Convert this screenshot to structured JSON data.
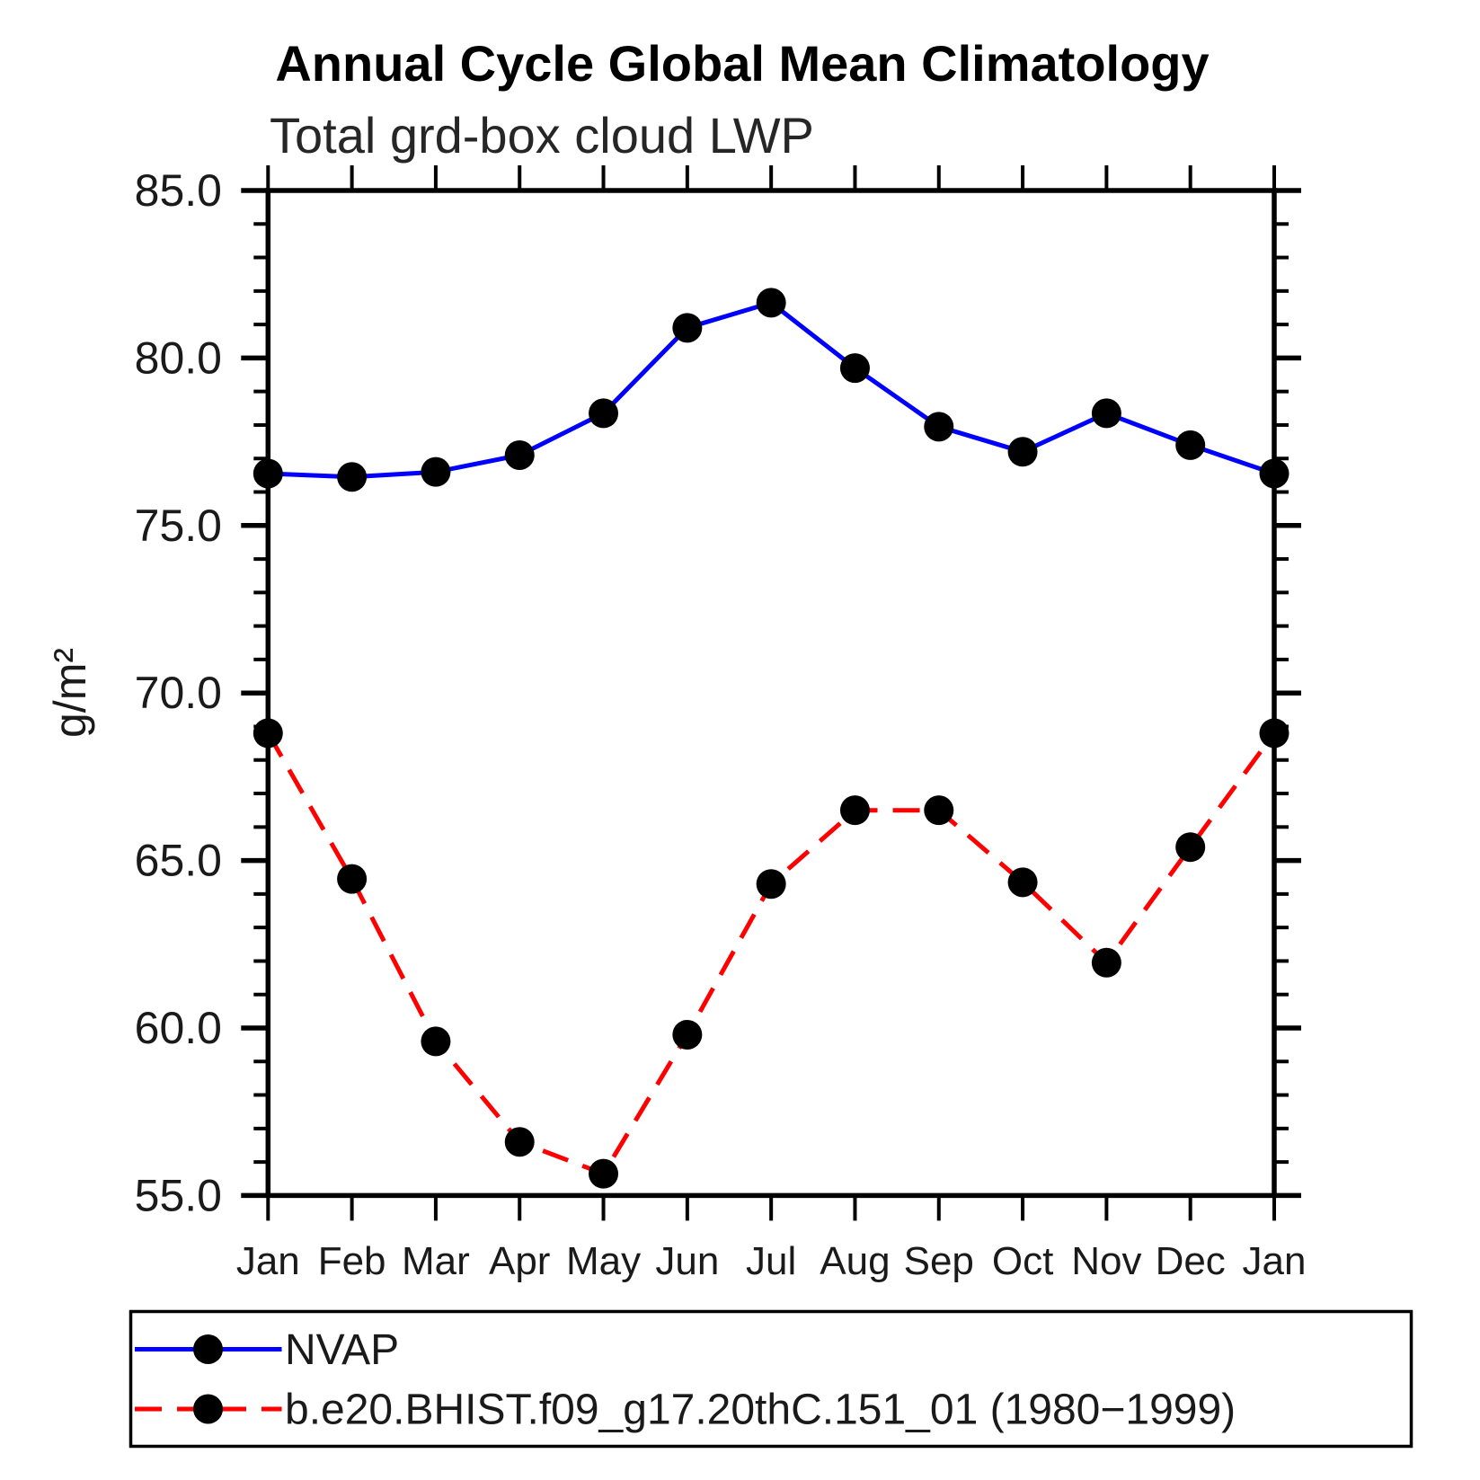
{
  "chart_data": {
    "type": "line",
    "title": "Annual Cycle Global Mean Climatology",
    "subtitle": "Total grd-box cloud LWP",
    "ylabel": "g/m²",
    "unit": "g/m²",
    "categories": [
      "Jan",
      "Feb",
      "Mar",
      "Apr",
      "May",
      "Jun",
      "Jul",
      "Aug",
      "Sep",
      "Oct",
      "Nov",
      "Dec",
      "Jan"
    ],
    "ylim": [
      55.0,
      85.0
    ],
    "yticks_major": [
      55.0,
      60.0,
      65.0,
      70.0,
      75.0,
      80.0,
      85.0
    ],
    "ytick_labels": [
      "55.0",
      "60.0",
      "65.0",
      "70.0",
      "75.0",
      "80.0",
      "85.0"
    ],
    "ytick_minor_step": 1.0,
    "grid": "off",
    "legend_position": "bottom-left box",
    "series": [
      {
        "name": "NVAP",
        "line_color": "#0000ff",
        "line_style": "solid",
        "marker": "circle",
        "marker_color": "#000000",
        "values": [
          76.55,
          76.45,
          76.6,
          77.1,
          78.35,
          80.9,
          81.65,
          79.7,
          77.95,
          77.2,
          78.35,
          77.4,
          76.55
        ]
      },
      {
        "name": "b.e20.BHIST.f09_g17.20thC.151_01 (1980−1999)",
        "line_color": "#ff0000",
        "line_style": "dashed",
        "marker": "circle",
        "marker_color": "#000000",
        "values": [
          68.8,
          64.45,
          59.6,
          56.6,
          55.65,
          59.8,
          64.3,
          66.5,
          66.5,
          64.35,
          61.95,
          65.4,
          68.8
        ]
      }
    ],
    "colors": {
      "axis": "#000000",
      "nvap_line": "#0000ff",
      "model_line": "#ff0000",
      "marker": "#000000",
      "background": "#ffffff"
    }
  }
}
